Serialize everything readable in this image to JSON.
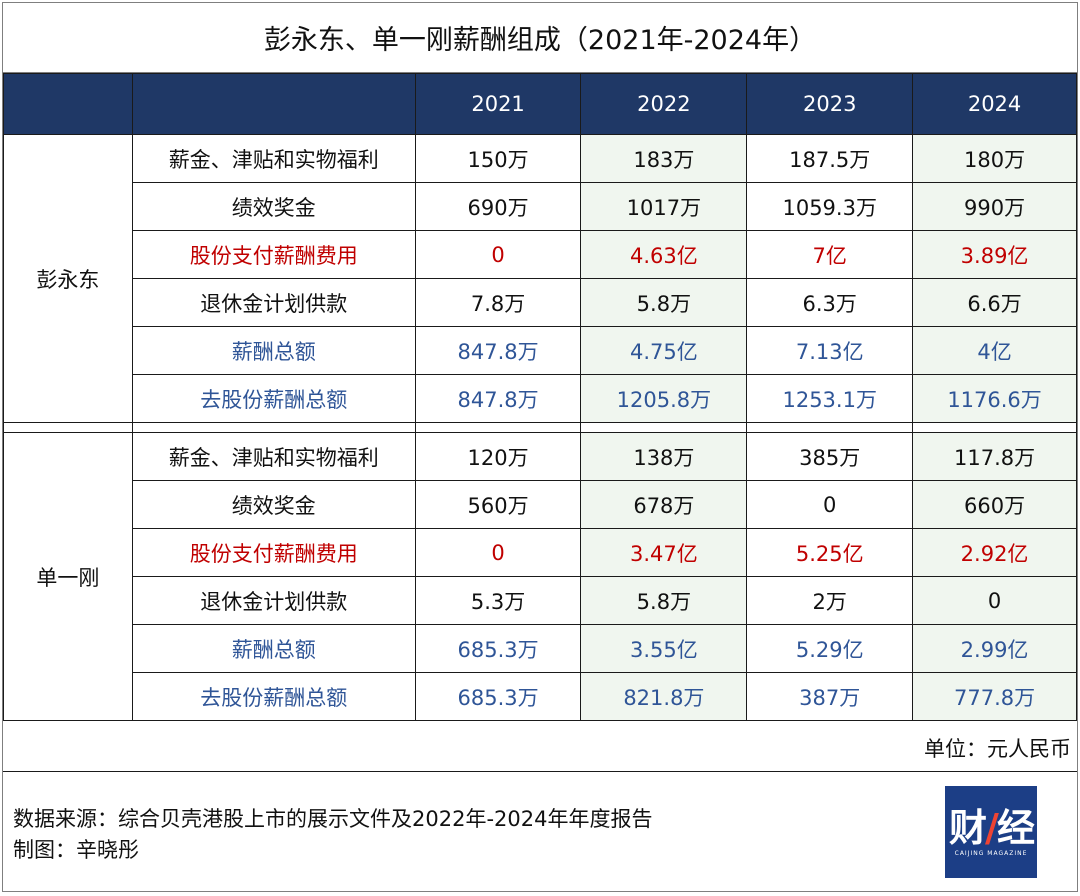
{
  "title": "彭永东、单一刚薪酬组成（2021年-2024年）",
  "years": [
    "2021",
    "2022",
    "2023",
    "2024"
  ],
  "groups": [
    {
      "name": "彭永东",
      "rows": [
        {
          "label": "薪金、津贴和实物福利",
          "values": [
            "150万",
            "183万",
            "187.5万",
            "180万"
          ],
          "style": "normal"
        },
        {
          "label": "绩效奖金",
          "values": [
            "690万",
            "1017万",
            "1059.3万",
            "990万"
          ],
          "style": "normal"
        },
        {
          "label": "股份支付薪酬费用",
          "values": [
            "0",
            "4.63亿",
            "7亿",
            "3.89亿"
          ],
          "style": "red"
        },
        {
          "label": "退休金计划供款",
          "values": [
            "7.8万",
            "5.8万",
            "6.3万",
            "6.6万"
          ],
          "style": "normal"
        },
        {
          "label": "薪酬总额",
          "values": [
            "847.8万",
            "4.75亿",
            "7.13亿",
            "4亿"
          ],
          "style": "blue-bold"
        },
        {
          "label": "去股份薪酬总额",
          "values": [
            "847.8万",
            "1205.8万",
            "1253.1万",
            "1176.6万"
          ],
          "style": "blue"
        }
      ]
    },
    {
      "name": "单一刚",
      "rows": [
        {
          "label": "薪金、津贴和实物福利",
          "values": [
            "120万",
            "138万",
            "385万",
            "117.8万"
          ],
          "style": "normal"
        },
        {
          "label": "绩效奖金",
          "values": [
            "560万",
            "678万",
            "0",
            "660万"
          ],
          "style": "normal"
        },
        {
          "label": "股份支付薪酬费用",
          "values": [
            "0",
            "3.47亿",
            "5.25亿",
            "2.92亿"
          ],
          "style": "red"
        },
        {
          "label": "退休金计划供款",
          "values": [
            "5.3万",
            "5.8万",
            "2万",
            "0"
          ],
          "style": "normal"
        },
        {
          "label": "薪酬总额",
          "values": [
            "685.3万",
            "3.55亿",
            "5.29亿",
            "2.99亿"
          ],
          "style": "blue-bold"
        },
        {
          "label": "去股份薪酬总额",
          "values": [
            "685.3万",
            "821.8万",
            "387万",
            "777.8万"
          ],
          "style": "blue"
        }
      ]
    }
  ],
  "unit_note": "单位：元人民币",
  "source_line": "数据来源：综合贝壳港股上市的展示文件及2022年-2024年年度报告",
  "chart_credit": "制图：辛晓彤",
  "logo": {
    "text_left": "财",
    "text_slash": "/",
    "text_right": "经",
    "subtitle": "CAIJING MAGAZINE"
  },
  "colors": {
    "header_bg": "#1f3866",
    "red_text": "#c00000",
    "blue_text": "#2f5597",
    "shaded_cell": "#f0f6ef",
    "logo_bg": "#1c3e86"
  }
}
